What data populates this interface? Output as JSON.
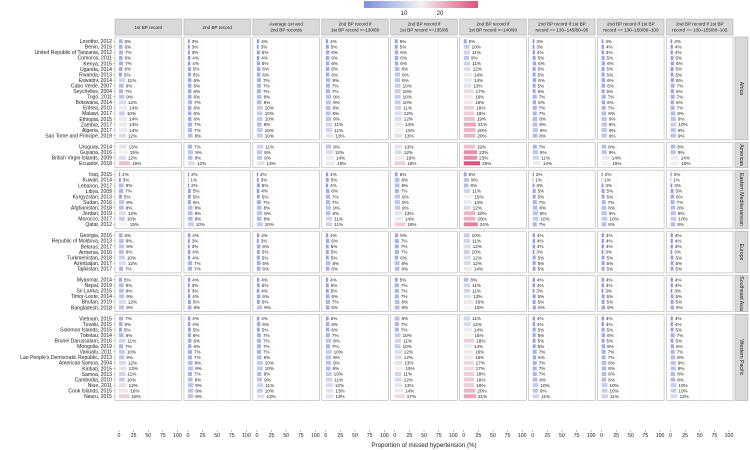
{
  "chart_data": {
    "type": "bar",
    "xlabel": "Proportion of missed hypertension (%)",
    "xlim": [
      0,
      100
    ],
    "xticks": [
      "0",
      "25",
      "50",
      "75",
      "100"
    ],
    "legend": {
      "ticks": [
        "10",
        "20"
      ],
      "colors": [
        "#7b8fe0",
        "#f2f2f2",
        "#e0507a"
      ],
      "placement": "top"
    },
    "panels": [
      "1st BP record",
      "2nd BP record",
      "Average 1st and\n2nd BP records",
      "2nd BP record if\n1st BP record >=130/80",
      "2nd BP record if\n1st BP record >=135/85",
      "2nd BP record if\n1st BP record >=140/90",
      "2nd BP record if 1st BP\nrecord == 130–145/80–95",
      "2nd BP record if 1st BP\nrecord == 130–150/80–100",
      "2nd BP record if 1st BP\nrecord == 130–155/80–105"
    ],
    "regions": [
      {
        "name": "Africa",
        "countries": [
          {
            "label": "Lesotho, 2012",
            "values": [
              6,
              3,
              4,
              4,
              5,
              5,
              3,
              3,
              3
            ]
          },
          {
            "label": "Benin, 2015",
            "values": [
              6,
              3,
              3,
              5,
              5,
              10,
              3,
              4,
              4
            ]
          },
          {
            "label": "United Republic of Tanzania, 2012",
            "values": [
              7,
              3,
              5,
              6,
              6,
              11,
              4,
              4,
              4
            ]
          },
          {
            "label": "Comoros, 2011",
            "values": [
              6,
              4,
              4,
              6,
              6,
              9,
              5,
              5,
              5
            ]
          },
          {
            "label": "Kenya, 2015",
            "values": [
              7,
              4,
              5,
              6,
              6,
              11,
              6,
              6,
              6
            ]
          },
          {
            "label": "Uganda, 2014",
            "values": [
              6,
              5,
              6,
              6,
              8,
              12,
              5,
              5,
              5
            ]
          },
          {
            "label": "Rwanda, 2013",
            "values": [
              5,
              5,
              6,
              6,
              9,
              14,
              5,
              5,
              5
            ]
          },
          {
            "label": "Eswatini, 2014",
            "values": [
              11,
              6,
              7,
              8,
              9,
              14,
              6,
              6,
              6
            ]
          },
          {
            "label": "Cabo Verde, 2007",
            "values": [
              8,
              6,
              7,
              7,
              10,
              13,
              5,
              6,
              7
            ]
          },
          {
            "label": "Seychelles, 2004",
            "values": [
              7,
              6,
              7,
              7,
              10,
              17,
              5,
              5,
              6
            ]
          },
          {
            "label": "Togo, 2011",
            "values": [
              9,
              6,
              8,
              9,
              10,
              16,
              7,
              7,
              7
            ]
          },
          {
            "label": "Botswana, 2014",
            "values": [
              12,
              7,
              8,
              9,
              10,
              16,
              6,
              6,
              6
            ]
          },
          {
            "label": "Eritrea, 2010",
            "values": [
              14,
              6,
              10,
              8,
              11,
              18,
              7,
              7,
              7
            ]
          },
          {
            "label": "Malawi, 2017",
            "values": [
              10,
              6,
              10,
              8,
              12,
              18,
              7,
              8,
              8
            ]
          },
          {
            "label": "Ethiopia, 2015",
            "values": [
              14,
              6,
              10,
              9,
              12,
              19,
              8,
              9,
              9
            ]
          },
          {
            "label": "Zambia, 2017",
            "values": [
              14,
              7,
              8,
              11,
              14,
              21,
              8,
              9,
              10
            ]
          },
          {
            "label": "Algeria, 2017",
            "values": [
              14,
              7,
              10,
              11,
              15,
              20,
              9,
              9,
              9
            ]
          },
          {
            "label": "Sao Tome and Principe, 2019",
            "values": [
              12,
              8,
              10,
              13,
              13,
              20,
              8,
              9,
              9
            ]
          }
        ]
      },
      {
        "name": "Americas",
        "countries": [
          {
            "label": "Uruguay, 2014",
            "values": [
              13,
              7,
              11,
              9,
              13,
              19,
              7,
              8,
              8
            ]
          },
          {
            "label": "Guyana, 2016",
            "values": [
              15,
              9,
              9,
              12,
              12,
              23,
              9,
              9,
              9
            ]
          },
          {
            "label": "British Virgin Islands, 2009",
            "values": [
              12,
              8,
              9,
              14,
              16,
              23,
              11,
              14,
              14
            ]
          },
          {
            "label": "Ecuador, 2018",
            "values": [
              19,
              12,
              13,
              16,
              18,
              28,
              14,
              15,
              15
            ]
          }
        ]
      },
      {
        "name": "Eastern Mediterranean",
        "countries": [
          {
            "label": "Iraq, 2015",
            "values": [
              2,
              2,
              2,
              4,
              5,
              5,
              2,
              2,
              2
            ]
          },
          {
            "label": "Kuwait, 2014",
            "values": [
              3,
              1,
              3,
              5,
              8,
              9,
              1,
              1,
              1
            ]
          },
          {
            "label": "Lebanon, 2017",
            "values": [
              8,
              2,
              5,
              4,
              8,
              8,
              3,
              3,
              3
            ]
          },
          {
            "label": "Libya, 2009",
            "values": [
              7,
              5,
              4,
              6,
              7,
              11,
              5,
              5,
              5
            ]
          },
          {
            "label": "Kyrgyzstan, 2013",
            "values": [
              5,
              5,
              5,
              7,
              9,
              15,
              5,
              5,
              6
            ]
          },
          {
            "label": "Sudan, 2016",
            "values": [
              9,
              5,
              7,
              7,
              9,
              14,
              7,
              7,
              7
            ]
          },
          {
            "label": "Afghanistan, 2018",
            "values": [
              8,
              8,
              8,
              9,
              9,
              12,
              8,
              8,
              8
            ]
          },
          {
            "label": "Jordan, 2019",
            "values": [
              12,
              8,
              9,
              8,
              13,
              20,
              9,
              9,
              9
            ]
          },
          {
            "label": "Morocco, 2017",
            "values": [
              10,
              8,
              8,
              11,
              14,
              20,
              10,
              10,
              10
            ]
          },
          {
            "label": "Qatar, 2012",
            "values": [
              15,
              10,
              10,
              11,
              18,
              24,
              7,
              8,
              8
            ]
          }
        ]
      },
      {
        "name": "Europe",
        "countries": [
          {
            "label": "Georgia, 2016",
            "values": [
              6,
              4,
              4,
              4,
              6,
              10,
              4,
              4,
              4
            ]
          },
          {
            "label": "Republic of Moldova, 2013",
            "values": [
              8,
              3,
              3,
              6,
              7,
              11,
              4,
              4,
              4
            ]
          },
          {
            "label": "Belarus, 2017",
            "values": [
              9,
              3,
              6,
              5,
              7,
              12,
              4,
              4,
              4
            ]
          },
          {
            "label": "Armenia, 2016",
            "values": [
              8,
              4,
              5,
              5,
              7,
              10,
              3,
              3,
              3
            ]
          },
          {
            "label": "Turkmenistan, 2018",
            "values": [
              10,
              4,
              5,
              5,
              6,
              12,
              5,
              5,
              5
            ]
          },
          {
            "label": "Azerbaijan, 2017",
            "values": [
              12,
              7,
              6,
              8,
              8,
              12,
              5,
              5,
              5
            ]
          },
          {
            "label": "Tajikistan, 2017",
            "values": [
              7,
              7,
              6,
              6,
              8,
              14,
              5,
              5,
              5
            ]
          }
        ]
      },
      {
        "name": "Southeast Asia",
        "countries": [
          {
            "label": "Myanmar, 2014",
            "values": [
              5,
              4,
              4,
              4,
              5,
              8,
              4,
              4,
              4
            ]
          },
          {
            "label": "Nepal, 2019",
            "values": [
              8,
              3,
              5,
              5,
              7,
              11,
              4,
              4,
              4
            ]
          },
          {
            "label": "Sri Lanka, 2015",
            "values": [
              8,
              3,
              4,
              5,
              7,
              11,
              3,
              3,
              3
            ]
          },
          {
            "label": "Timor-Leste, 2014",
            "values": [
              9,
              4,
              6,
              6,
              7,
              13,
              5,
              5,
              5
            ]
          },
          {
            "label": "Bhutan, 2019",
            "values": [
              12,
              5,
              5,
              7,
              8,
              16,
              5,
              5,
              5
            ]
          },
          {
            "label": "Bangladesh, 2018",
            "values": [
              9,
              6,
              9,
              6,
              8,
              15,
              6,
              6,
              6
            ]
          }
        ]
      },
      {
        "name": "Western Pacific",
        "countries": [
          {
            "label": "Vietnam, 2015",
            "values": [
              7,
              4,
              4,
              5,
              8,
              11,
              4,
              4,
              4
            ]
          },
          {
            "label": "Tuvalu, 2015",
            "values": [
              6,
              4,
              6,
              6,
              7,
              12,
              4,
              4,
              4
            ]
          },
          {
            "label": "Solomon Islands, 2015",
            "values": [
              5,
              5,
              5,
              6,
              7,
              14,
              5,
              5,
              5
            ]
          },
          {
            "label": "Tokelau, 2014",
            "values": [
              8,
              5,
              7,
              7,
              10,
              15,
              5,
              6,
              7
            ]
          },
          {
            "label": "Brunei Darussalam, 2016",
            "values": [
              11,
              6,
              7,
              9,
              11,
              18,
              5,
              5,
              5
            ]
          },
          {
            "label": "Mongolia, 2019",
            "values": [
              7,
              6,
              7,
              7,
              10,
              14,
              5,
              6,
              6
            ]
          },
          {
            "label": "Vanuatu, 2011",
            "values": [
              10,
              7,
              7,
              10,
              12,
              16,
              7,
              7,
              7
            ]
          },
          {
            "label": "Lao People's Democratic Republic, 2013",
            "values": [
              9,
              7,
              8,
              9,
              12,
              16,
              6,
              7,
              8
            ]
          },
          {
            "label": "American Samoa, 2004",
            "values": [
              12,
              8,
              10,
              9,
              13,
              17,
              7,
              8,
              9
            ]
          },
          {
            "label": "Kiribati, 2015",
            "values": [
              13,
              9,
              10,
              8,
              15,
              17,
              7,
              8,
              9
            ]
          },
          {
            "label": "Samoa, 2013",
            "values": [
              11,
              7,
              8,
              10,
              11,
              18,
              7,
              8,
              8
            ]
          },
          {
            "label": "Cambodia, 2010",
            "values": [
              10,
              8,
              9,
              11,
              12,
              18,
              8,
              8,
              8
            ]
          },
          {
            "label": "Niue, 2011",
            "values": [
              13,
              9,
              11,
              12,
              13,
              18,
              10,
              10,
              10
            ]
          },
          {
            "label": "Cook Islands, 2015",
            "values": [
              16,
              9,
              10,
              13,
              14,
              20,
              9,
              10,
              10
            ]
          },
          {
            "label": "Nauru, 2015",
            "values": [
              18,
              9,
              13,
              13,
              17,
              21,
              11,
              11,
              12
            ]
          }
        ]
      }
    ]
  }
}
